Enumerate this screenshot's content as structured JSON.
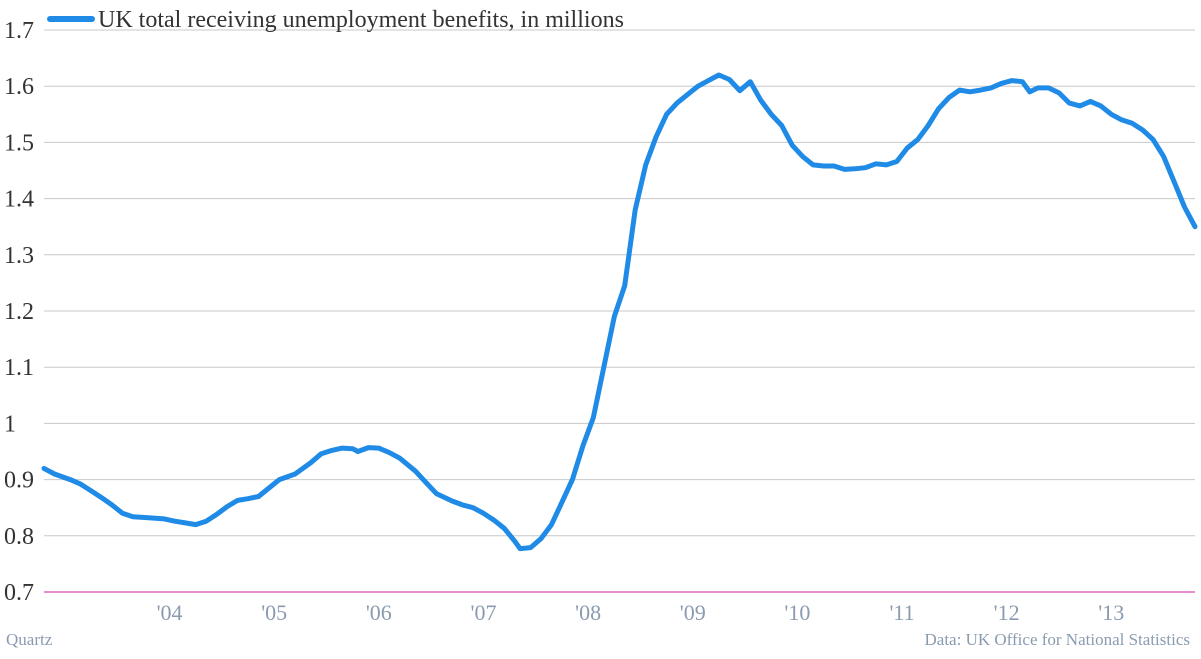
{
  "chart_data": {
    "type": "line",
    "series": [
      {
        "name": "UK total receiving unemployment benefits, in millions",
        "color": "#1f8be6",
        "points": [
          [
            2003.3,
            0.92
          ],
          [
            2003.4,
            0.91
          ],
          [
            2003.55,
            0.9
          ],
          [
            2003.65,
            0.892
          ],
          [
            2003.75,
            0.88
          ],
          [
            2003.85,
            0.868
          ],
          [
            2003.95,
            0.855
          ],
          [
            2004.05,
            0.84
          ],
          [
            2004.15,
            0.834
          ],
          [
            2004.3,
            0.832
          ],
          [
            2004.45,
            0.83
          ],
          [
            2004.55,
            0.826
          ],
          [
            2004.65,
            0.823
          ],
          [
            2004.75,
            0.82
          ],
          [
            2004.85,
            0.826
          ],
          [
            2004.95,
            0.838
          ],
          [
            2005.05,
            0.852
          ],
          [
            2005.15,
            0.863
          ],
          [
            2005.25,
            0.866
          ],
          [
            2005.35,
            0.87
          ],
          [
            2005.45,
            0.885
          ],
          [
            2005.55,
            0.9
          ],
          [
            2005.7,
            0.91
          ],
          [
            2005.85,
            0.93
          ],
          [
            2005.95,
            0.946
          ],
          [
            2006.05,
            0.952
          ],
          [
            2006.15,
            0.956
          ],
          [
            2006.25,
            0.955
          ],
          [
            2006.3,
            0.95
          ],
          [
            2006.4,
            0.957
          ],
          [
            2006.5,
            0.956
          ],
          [
            2006.6,
            0.948
          ],
          [
            2006.7,
            0.938
          ],
          [
            2006.85,
            0.915
          ],
          [
            2006.95,
            0.895
          ],
          [
            2007.05,
            0.875
          ],
          [
            2007.2,
            0.862
          ],
          [
            2007.3,
            0.855
          ],
          [
            2007.4,
            0.85
          ],
          [
            2007.5,
            0.84
          ],
          [
            2007.6,
            0.828
          ],
          [
            2007.7,
            0.813
          ],
          [
            2007.8,
            0.79
          ],
          [
            2007.85,
            0.777
          ],
          [
            2007.95,
            0.779
          ],
          [
            2008.05,
            0.795
          ],
          [
            2008.15,
            0.82
          ],
          [
            2008.25,
            0.86
          ],
          [
            2008.35,
            0.9
          ],
          [
            2008.45,
            0.96
          ],
          [
            2008.55,
            1.01
          ],
          [
            2008.65,
            1.1
          ],
          [
            2008.75,
            1.19
          ],
          [
            2008.85,
            1.245
          ],
          [
            2008.95,
            1.38
          ],
          [
            2009.05,
            1.46
          ],
          [
            2009.15,
            1.51
          ],
          [
            2009.25,
            1.55
          ],
          [
            2009.35,
            1.57
          ],
          [
            2009.45,
            1.585
          ],
          [
            2009.55,
            1.6
          ],
          [
            2009.65,
            1.61
          ],
          [
            2009.75,
            1.62
          ],
          [
            2009.85,
            1.612
          ],
          [
            2009.95,
            1.592
          ],
          [
            2010.05,
            1.608
          ],
          [
            2010.15,
            1.575
          ],
          [
            2010.25,
            1.55
          ],
          [
            2010.35,
            1.53
          ],
          [
            2010.45,
            1.495
          ],
          [
            2010.55,
            1.475
          ],
          [
            2010.65,
            1.46
          ],
          [
            2010.75,
            1.458
          ],
          [
            2010.85,
            1.458
          ],
          [
            2010.95,
            1.452
          ],
          [
            2011.05,
            1.453
          ],
          [
            2011.15,
            1.455
          ],
          [
            2011.25,
            1.462
          ],
          [
            2011.35,
            1.46
          ],
          [
            2011.45,
            1.466
          ],
          [
            2011.55,
            1.49
          ],
          [
            2011.65,
            1.505
          ],
          [
            2011.75,
            1.53
          ],
          [
            2011.85,
            1.56
          ],
          [
            2011.95,
            1.58
          ],
          [
            2012.05,
            1.593
          ],
          [
            2012.15,
            1.59
          ],
          [
            2012.25,
            1.593
          ],
          [
            2012.35,
            1.597
          ],
          [
            2012.45,
            1.605
          ],
          [
            2012.55,
            1.61
          ],
          [
            2012.65,
            1.608
          ],
          [
            2012.72,
            1.59
          ],
          [
            2012.8,
            1.597
          ],
          [
            2012.9,
            1.597
          ],
          [
            2013.0,
            1.588
          ],
          [
            2013.1,
            1.57
          ],
          [
            2013.2,
            1.565
          ],
          [
            2013.3,
            1.573
          ],
          [
            2013.4,
            1.565
          ],
          [
            2013.5,
            1.55
          ],
          [
            2013.6,
            1.54
          ],
          [
            2013.7,
            1.534
          ],
          [
            2013.8,
            1.522
          ],
          [
            2013.9,
            1.505
          ],
          [
            2014.0,
            1.475
          ],
          [
            2014.1,
            1.43
          ],
          [
            2014.2,
            1.385
          ],
          [
            2014.3,
            1.35
          ]
        ]
      }
    ],
    "ylim": [
      0.7,
      1.7
    ],
    "y_ticks": [
      0.7,
      0.8,
      0.9,
      1,
      1.1,
      1.2,
      1.3,
      1.4,
      1.5,
      1.6,
      1.7
    ],
    "y_tick_labels": [
      "0.7",
      "0.8",
      "0.9",
      "1",
      "1.1",
      "1.2",
      "1.3",
      "1.4",
      "1.5",
      "1.6",
      "1.7"
    ],
    "xlim": [
      2003.3,
      2014.3
    ],
    "x_ticks": [
      2004.5,
      2005.5,
      2006.5,
      2007.5,
      2008.5,
      2009.5,
      2010.5,
      2011.5,
      2012.5,
      2013.5
    ],
    "x_tick_labels": [
      "'04",
      "'05",
      "'06",
      "'07",
      "'08",
      "'09",
      "'10",
      "'11",
      "'12",
      "'13"
    ],
    "grid": true,
    "legend_placement": "top-left",
    "baseline_color": "#e26ac1"
  },
  "footer": {
    "source_left": "Quartz",
    "source_right": "Data: UK Office for National Statistics"
  }
}
